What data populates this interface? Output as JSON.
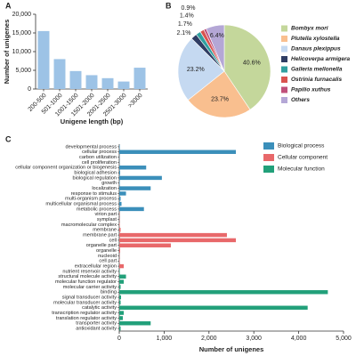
{
  "chart_data": [
    {
      "type": "bar",
      "panel": "A",
      "xlabel": "Unigene length (bp)",
      "ylabel": "Number of unigenes",
      "categories": [
        "200-500",
        "501-1000",
        "1001-1500",
        "1501-2000",
        "2001-2500",
        "2501-3000",
        ">3000"
      ],
      "values": [
        15500,
        8000,
        4800,
        3700,
        2900,
        2000,
        5700
      ],
      "color": "#9dc3e6",
      "ylim": [
        0,
        20000
      ],
      "yticks": [
        0,
        {
          "value": 5000,
          "label": "5,000"
        },
        {
          "value": 10000,
          "label": "10,000"
        },
        {
          "value": 15000,
          "label": "15,000"
        },
        {
          "value": 20000,
          "label": "20,000"
        }
      ]
    },
    {
      "type": "pie",
      "panel": "B",
      "categories": [
        "Bombyx mori",
        "Plutella xylostella",
        "Danaus plexippus",
        "Helicoverpa armigera",
        "Galleria mellonella",
        "Ostrinia furnacalis",
        "Papilio xuthus",
        "Others"
      ],
      "values": [
        40.6,
        23.7,
        23.2,
        2.1,
        1.7,
        1.4,
        0.9,
        6.4
      ],
      "value_labels": [
        "40.6%",
        "23.7%",
        "23.2%",
        "2.1%",
        "1.7%",
        "1.4%",
        "0.9%",
        "6.4%"
      ],
      "colors": [
        "#c4d79b",
        "#f9bf8f",
        "#c5d9f1",
        "#2f3d64",
        "#31a0a0",
        "#d9534f",
        "#c0507a",
        "#b4a7d6"
      ]
    },
    {
      "type": "barh",
      "panel": "C",
      "xlabel": "Number of unigenes",
      "categories": [
        "developmental process",
        "cellular process",
        "carbon utilization",
        "cell proliferation",
        "cellular component organization or biogenesis",
        "biological adhesion",
        "biological regulation",
        "growth",
        "localization",
        "response to stimulus",
        "multi-organism process",
        "multicellular organismal process",
        "metabolic process",
        "virion part",
        "symplast",
        "macromolecular complex",
        "membrane",
        "membrane part",
        "cell",
        "organelle part",
        "organelle",
        "nucleoid",
        "cell part",
        "extracellular region",
        "nutrient reservoir activity",
        "structural molecule activity",
        "molecular function regulator",
        "molecular carrier activity",
        "binding",
        "signal transducer activity",
        "molecular transducer activity",
        "catalytic activity",
        "transcription regulator activity",
        "translation regulator activity",
        "transporter activity",
        "antioxidant activity"
      ],
      "series": [
        {
          "name": "Biological process",
          "color": "#3b8fba",
          "values": [
            10,
            2600,
            5,
            5,
            600,
            20,
            950,
            10,
            700,
            150,
            30,
            50,
            550,
            null,
            null,
            null,
            null,
            null,
            null,
            null,
            null,
            null,
            null,
            null,
            null,
            null,
            null,
            null,
            null,
            null,
            null,
            null,
            null,
            null,
            null,
            null
          ]
        },
        {
          "name": "Cellular component",
          "color": "#e8686a",
          "values": [
            null,
            null,
            null,
            null,
            null,
            null,
            null,
            null,
            null,
            null,
            null,
            null,
            null,
            5,
            5,
            10,
            30,
            2400,
            2600,
            1150,
            20,
            5,
            10,
            100,
            null,
            null,
            null,
            null,
            null,
            null,
            null,
            null,
            null,
            null,
            null,
            null
          ]
        },
        {
          "name": "Molecular function",
          "color": "#22a07a",
          "values": [
            null,
            null,
            null,
            null,
            null,
            null,
            null,
            null,
            null,
            null,
            null,
            null,
            null,
            null,
            null,
            null,
            null,
            null,
            null,
            null,
            null,
            null,
            null,
            null,
            10,
            150,
            100,
            30,
            4650,
            40,
            30,
            4200,
            100,
            80,
            700,
            30
          ]
        }
      ],
      "xlim": [
        0,
        5000
      ],
      "xticks": [
        0,
        {
          "value": 1000,
          "label": "1,000"
        },
        {
          "value": 2000,
          "label": "2,000"
        },
        {
          "value": 3000,
          "label": "3,000"
        },
        {
          "value": 4000,
          "label": "4,000"
        },
        {
          "value": 5000,
          "label": "5,000"
        }
      ],
      "legend": "upper right"
    }
  ]
}
